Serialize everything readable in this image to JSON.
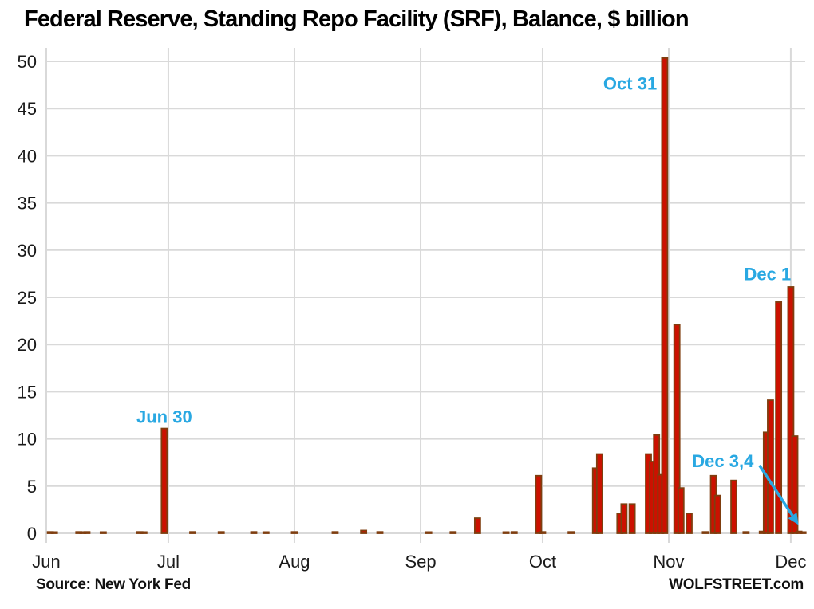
{
  "title": "Federal Reserve, Standing Repo Facility (SRF), Balance, $ billion",
  "footer": {
    "source": "Source: New York Fed",
    "brand": "WOLFSTREET.com"
  },
  "colors": {
    "bar_fill": "#cc1100",
    "bar_border": "#7f3e0f",
    "annotation": "#29a8e2",
    "gridline": "#d9d9d9",
    "axis_text": "#1a1a1a"
  },
  "chart_data": {
    "type": "bar",
    "title": "Federal Reserve, Standing Repo Facility (SRF), Balance, $ billion",
    "xlabel": "",
    "ylabel": "$ billion",
    "ylim": [
      0,
      50
    ],
    "y_ticks": [
      0,
      5,
      10,
      15,
      20,
      25,
      30,
      35,
      40,
      45,
      50
    ],
    "x_months": [
      "Jun",
      "Jul",
      "Aug",
      "Sep",
      "Oct",
      "Nov",
      "Dec"
    ],
    "grid": true,
    "legend": "none",
    "bars": [
      {
        "date": "Jun 2",
        "value": 0.15
      },
      {
        "date": "Jun 3",
        "value": 0.1
      },
      {
        "date": "Jun 9",
        "value": 0.15
      },
      {
        "date": "Jun 10",
        "value": 0.1
      },
      {
        "date": "Jun 11",
        "value": 0.15
      },
      {
        "date": "Jun 15",
        "value": 0.1
      },
      {
        "date": "Jun 24",
        "value": 0.15
      },
      {
        "date": "Jun 25",
        "value": 0.1
      },
      {
        "date": "Jun 30",
        "value": 11.1
      },
      {
        "date": "Jul 7",
        "value": 0.15
      },
      {
        "date": "Jul 14",
        "value": 0.15
      },
      {
        "date": "Jul 22",
        "value": 0.15
      },
      {
        "date": "Jul 25",
        "value": 0.1
      },
      {
        "date": "Aug 1",
        "value": 0.15
      },
      {
        "date": "Aug 11",
        "value": 0.15
      },
      {
        "date": "Aug 18",
        "value": 0.3
      },
      {
        "date": "Aug 22",
        "value": 0.15
      },
      {
        "date": "Sep 3",
        "value": 0.1
      },
      {
        "date": "Sep 9",
        "value": 0.15
      },
      {
        "date": "Sep 15",
        "value": 1.6
      },
      {
        "date": "Sep 22",
        "value": 0.1
      },
      {
        "date": "Sep 24",
        "value": 0.15
      },
      {
        "date": "Sep 30",
        "value": 6.1
      },
      {
        "date": "Oct 1",
        "value": 0.15
      },
      {
        "date": "Oct 8",
        "value": 0.15
      },
      {
        "date": "Oct 14",
        "value": 6.9
      },
      {
        "date": "Oct 15",
        "value": 8.4
      },
      {
        "date": "Oct 20",
        "value": 2.1
      },
      {
        "date": "Oct 21",
        "value": 3.1
      },
      {
        "date": "Oct 23",
        "value": 3.1
      },
      {
        "date": "Oct 27",
        "value": 8.4
      },
      {
        "date": "Oct 28",
        "value": 7.6
      },
      {
        "date": "Oct 29",
        "value": 10.4
      },
      {
        "date": "Oct 30",
        "value": 6.2
      },
      {
        "date": "Oct 31",
        "value": 50.35
      },
      {
        "date": "Nov 3",
        "value": 22.1
      },
      {
        "date": "Nov 4",
        "value": 4.8
      },
      {
        "date": "Nov 6",
        "value": 2.1
      },
      {
        "date": "Nov 10",
        "value": 0.15
      },
      {
        "date": "Nov 12",
        "value": 6.1
      },
      {
        "date": "Nov 13",
        "value": 4.0
      },
      {
        "date": "Nov 17",
        "value": 5.6
      },
      {
        "date": "Nov 20",
        "value": 0.15
      },
      {
        "date": "Nov 24",
        "value": 0.2
      },
      {
        "date": "Nov 25",
        "value": 10.7
      },
      {
        "date": "Nov 26",
        "value": 14.1
      },
      {
        "date": "Nov 28",
        "value": 24.5
      },
      {
        "date": "Dec 1",
        "value": 26.1
      },
      {
        "date": "Dec 2",
        "value": 10.3
      },
      {
        "date": "Dec 3",
        "value": 0.2
      },
      {
        "date": "Dec 4",
        "value": 0.1
      }
    ],
    "annotations": [
      {
        "text": "Jun 30",
        "x_day": 29,
        "y_value": 11.7
      },
      {
        "text": "Oct 31",
        "x_day": 143.5,
        "y_value": 47.0
      },
      {
        "text": "Dec 1",
        "x_day": 177.3,
        "y_value": 26.8
      },
      {
        "text": "Dec 3,4",
        "x_day": 166.3,
        "y_value": 7.0,
        "arrow": {
          "x_day_from": 175.3,
          "y_value_from": 7.2,
          "x_day_to": 184.9,
          "y_value_to": 0.9
        }
      }
    ]
  }
}
